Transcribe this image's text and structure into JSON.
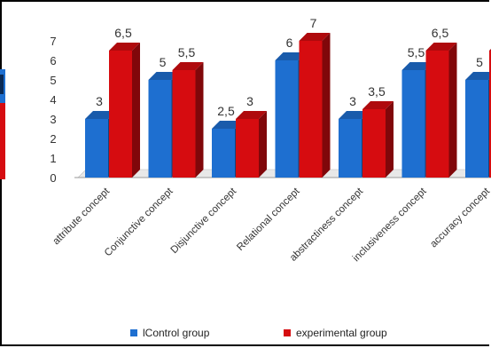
{
  "chart_data": {
    "type": "bar",
    "categories": [
      "attribute concept",
      "Conjunctive concept",
      "Disjunctive concept",
      "Relational concept",
      "abstractiness concept",
      "inclusiveness concept",
      "accuracy concept"
    ],
    "series": [
      {
        "name": "lControl group",
        "values": [
          3,
          5,
          2.5,
          6,
          3,
          5.5,
          5
        ],
        "labels": [
          "3",
          "5",
          "2,5",
          "6",
          "3",
          "5,5",
          "5"
        ],
        "color": "#1e6fd0"
      },
      {
        "name": "experimental group",
        "values": [
          6.5,
          5.5,
          3,
          7,
          3.5,
          6.5,
          6.5
        ],
        "labels": [
          "6,5",
          "5,5",
          "3",
          "7",
          "3,5",
          "6,5",
          ""
        ],
        "color": "#d60c10"
      }
    ],
    "yticks": [
      "0",
      "1",
      "2",
      "3",
      "4",
      "5",
      "6",
      "7"
    ],
    "ylim": [
      0,
      7
    ],
    "grid": false,
    "legend_position": "bottom"
  }
}
